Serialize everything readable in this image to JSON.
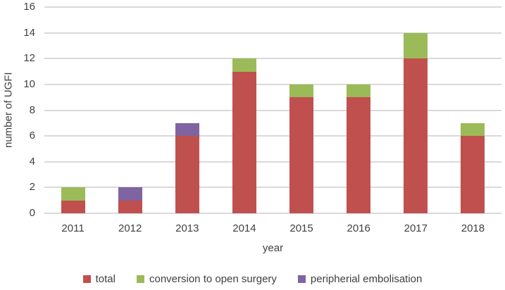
{
  "chart_data": {
    "type": "bar",
    "stacked": true,
    "title": "",
    "xlabel": "year",
    "ylabel": "number of UGFI",
    "categories": [
      "2011",
      "2012",
      "2013",
      "2014",
      "2015",
      "2016",
      "2017",
      "2018"
    ],
    "series": [
      {
        "name": "total",
        "color": "#c0504d",
        "values": [
          1,
          1,
          6,
          11,
          9,
          9,
          12,
          6
        ]
      },
      {
        "name": "conversion to open surgery",
        "color": "#9bbb59",
        "values": [
          1,
          0,
          0,
          1,
          1,
          1,
          2,
          1
        ]
      },
      {
        "name": "peripherial embolisation",
        "color": "#8064a2",
        "values": [
          0,
          1,
          1,
          0,
          0,
          0,
          0,
          0
        ]
      }
    ],
    "ylim": [
      0,
      16
    ],
    "ytick_step": 2,
    "yticks": [
      0,
      2,
      4,
      6,
      8,
      10,
      12,
      14,
      16
    ],
    "grid": true,
    "legend_position": "bottom"
  },
  "colors": {
    "background": "#ffffff",
    "gridline": "#d9d9d9",
    "text": "#404040"
  }
}
